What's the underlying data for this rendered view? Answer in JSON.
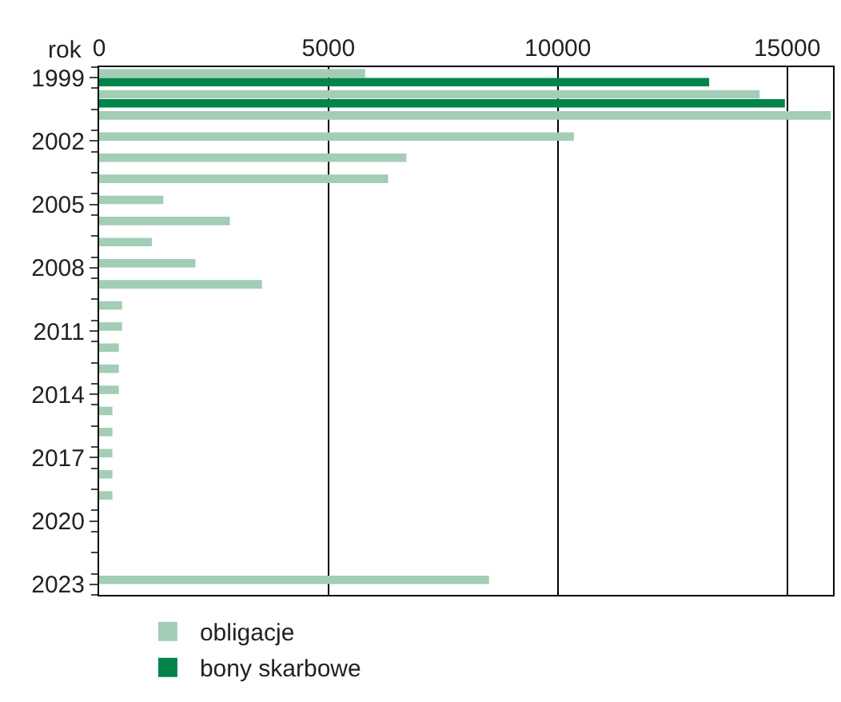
{
  "chart_data": {
    "type": "bar",
    "orientation": "horizontal",
    "ylabel": "rok",
    "categories": [
      "1999",
      null,
      null,
      "2002",
      null,
      null,
      "2005",
      null,
      null,
      "2008",
      null,
      null,
      "2011",
      null,
      null,
      "2014",
      null,
      null,
      "2017",
      null,
      null,
      "2020",
      null,
      null,
      "2023"
    ],
    "series": [
      {
        "name": "obligacje",
        "color": "#a3cdb5",
        "values": [
          5800,
          14400,
          15950,
          10350,
          6700,
          6300,
          1400,
          2850,
          1150,
          2100,
          3550,
          500,
          500,
          430,
          430,
          430,
          290,
          290,
          290,
          290,
          290,
          null,
          null,
          null,
          8500
        ]
      },
      {
        "name": "bony skarbowe",
        "color": "#00844a",
        "values": [
          13300,
          14950,
          null,
          null,
          null,
          null,
          null,
          null,
          null,
          null,
          null,
          null,
          null,
          null,
          null,
          null,
          null,
          null,
          null,
          null,
          null,
          null,
          null,
          null,
          null
        ]
      }
    ],
    "xlim": [
      0,
      16000
    ],
    "xticks": [
      0,
      5000,
      10000,
      15000
    ],
    "grid": "x",
    "legend": "bottom"
  }
}
